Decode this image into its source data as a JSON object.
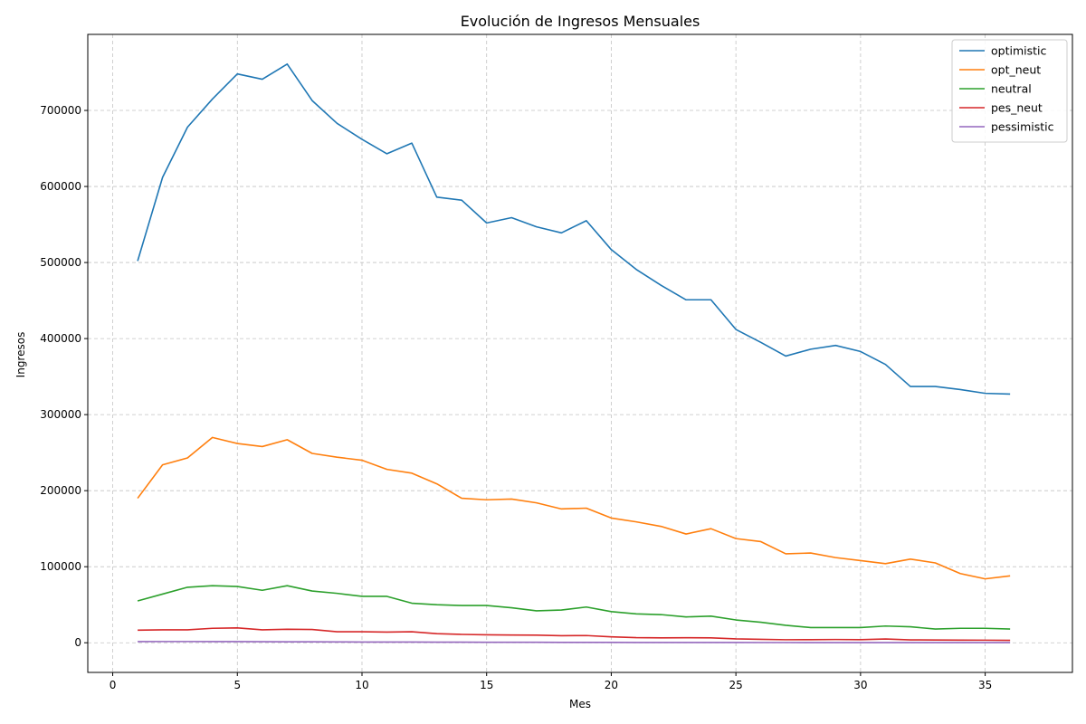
{
  "chart_data": {
    "type": "line",
    "title": "Evolución de Ingresos Mensuales",
    "xlabel": "Mes",
    "ylabel": "Ingresos",
    "xlim": [
      -1,
      38.5
    ],
    "ylim": [
      -39000,
      800000
    ],
    "xticks": [
      0,
      5,
      10,
      15,
      20,
      25,
      30,
      35
    ],
    "yticks": [
      0,
      100000,
      200000,
      300000,
      400000,
      500000,
      600000,
      700000
    ],
    "grid": true,
    "legend_position": "top-right",
    "x": [
      1,
      2,
      3,
      4,
      5,
      6,
      7,
      8,
      9,
      10,
      11,
      12,
      13,
      14,
      15,
      16,
      17,
      18,
      19,
      20,
      21,
      22,
      23,
      24,
      25,
      26,
      27,
      28,
      29,
      30,
      31,
      32,
      33,
      34,
      35,
      36
    ],
    "series": [
      {
        "name": "optimistic",
        "color": "#1f77b4",
        "values": [
          502000,
          612000,
          678000,
          715000,
          748000,
          741000,
          761000,
          713000,
          683000,
          662000,
          643000,
          657000,
          586000,
          582000,
          552000,
          559000,
          547000,
          539000,
          555000,
          517000,
          491000,
          470000,
          451000,
          451000,
          412000,
          395000,
          377000,
          386000,
          391000,
          383000,
          366000,
          337000,
          337000,
          333000,
          328000,
          327000
        ]
      },
      {
        "name": "opt_neut",
        "color": "#ff7f0e",
        "values": [
          190000,
          234000,
          243000,
          270000,
          262000,
          258000,
          267000,
          249000,
          244000,
          240000,
          228000,
          223000,
          209000,
          190000,
          188000,
          189000,
          184000,
          176000,
          177000,
          164000,
          159000,
          153000,
          143000,
          150000,
          137000,
          133000,
          117000,
          118000,
          112000,
          108000,
          104000,
          110000,
          105000,
          91000,
          84000,
          88000
        ]
      },
      {
        "name": "neutral",
        "color": "#2ca02c",
        "values": [
          55000,
          64000,
          73000,
          75000,
          74000,
          69000,
          75000,
          68000,
          65000,
          61000,
          61000,
          52000,
          50000,
          49000,
          49000,
          46000,
          42000,
          43000,
          47000,
          41000,
          38000,
          37000,
          34000,
          35000,
          30000,
          27000,
          23000,
          20000,
          20000,
          20000,
          22000,
          21000,
          18000,
          19000,
          19000,
          18000
        ]
      },
      {
        "name": "pes_neut",
        "color": "#d62728",
        "values": [
          16500,
          17000,
          17000,
          19000,
          19500,
          17000,
          17800,
          17500,
          14500,
          14500,
          14000,
          14500,
          12000,
          11000,
          10500,
          10200,
          10000,
          9300,
          9500,
          7800,
          6700,
          6400,
          6600,
          6500,
          5100,
          4500,
          4000,
          4100,
          4300,
          4100,
          5000,
          3800,
          3600,
          3500,
          3400,
          3200
        ]
      },
      {
        "name": "pessimistic",
        "color": "#9467bd",
        "values": [
          1500,
          1600,
          1600,
          1500,
          1500,
          1400,
          1300,
          1200,
          1100,
          1000,
          950,
          900,
          800,
          750,
          700,
          650,
          600,
          550,
          500,
          450,
          400,
          380,
          350,
          320,
          300,
          280,
          260,
          240,
          220,
          200,
          190,
          180,
          170,
          160,
          150,
          140
        ]
      }
    ]
  }
}
